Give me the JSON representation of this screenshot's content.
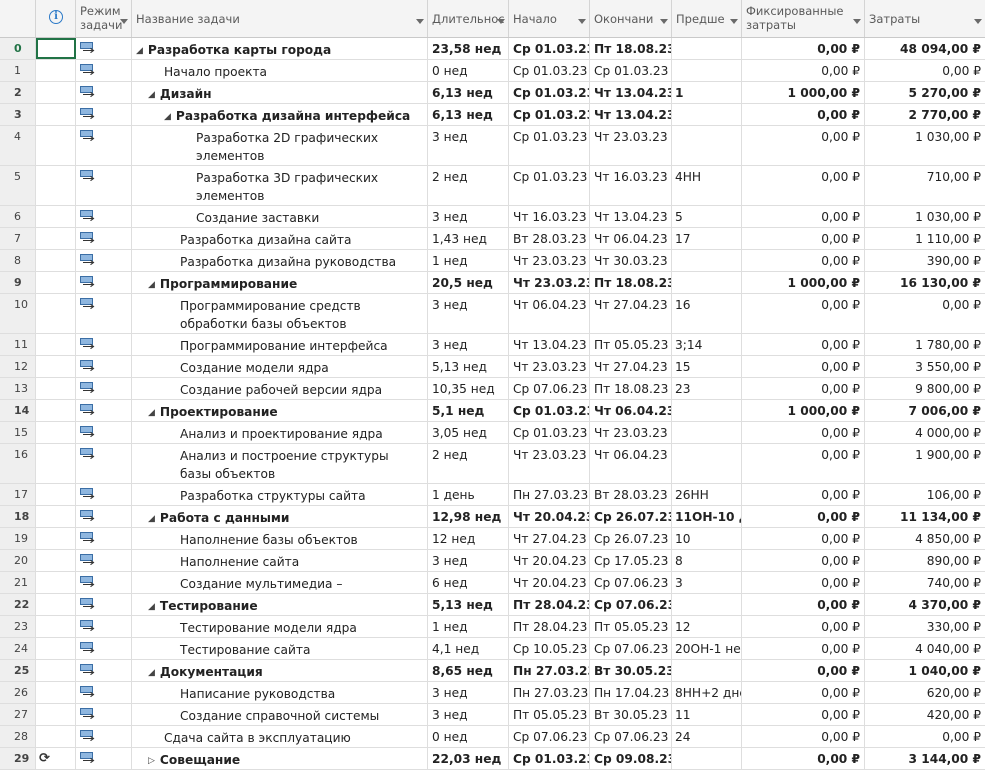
{
  "header": {
    "indicators_icon": "info-icon",
    "mode": "Режим задачи",
    "name": "Название задачи",
    "duration": "Длительнос",
    "start": "Начало",
    "finish": "Окончани",
    "predecessors": "Предше",
    "fixed_cost": "Фиксированные затраты",
    "cost": "Затраты"
  },
  "tasks": [
    {
      "id": "0",
      "level": 0,
      "summary": true,
      "expanded": true,
      "name": "Разработка карты города",
      "duration": "23,58 нед",
      "start": "Ср 01.03.23",
      "finish": "Пт 18.08.23",
      "pred": "",
      "fixed": "0,00 ₽",
      "cost": "48 094,00 ₽"
    },
    {
      "id": "1",
      "level": 1,
      "summary": false,
      "name": "Начало проекта",
      "duration": "0 нед",
      "start": "Ср 01.03.23",
      "finish": "Ср 01.03.23",
      "pred": "",
      "fixed": "0,00 ₽",
      "cost": "0,00 ₽"
    },
    {
      "id": "2",
      "level": 1,
      "summary": true,
      "expanded": true,
      "name": "Дизайн",
      "duration": "6,13 нед",
      "start": "Ср 01.03.23",
      "finish": "Чт 13.04.23",
      "pred": "1",
      "fixed": "1 000,00 ₽",
      "cost": "5 270,00 ₽"
    },
    {
      "id": "3",
      "level": 2,
      "summary": true,
      "expanded": true,
      "name": "Разработка дизайна интерфейса",
      "duration": "6,13 нед",
      "start": "Ср 01.03.23",
      "finish": "Чт 13.04.23",
      "pred": "",
      "fixed": "0,00 ₽",
      "cost": "2 770,00 ₽"
    },
    {
      "id": "4",
      "level": 3,
      "summary": false,
      "tall": true,
      "name": "Разработка 2D графических элементов",
      "duration": "3 нед",
      "start": "Ср 01.03.23",
      "finish": "Чт 23.03.23",
      "pred": "",
      "fixed": "0,00 ₽",
      "cost": "1 030,00 ₽"
    },
    {
      "id": "5",
      "level": 3,
      "summary": false,
      "tall": true,
      "name": "Разработка 3D графических элементов",
      "duration": "2 нед",
      "start": "Ср 01.03.23",
      "finish": "Чт 16.03.23",
      "pred": "4НН",
      "fixed": "0,00 ₽",
      "cost": "710,00 ₽"
    },
    {
      "id": "6",
      "level": 3,
      "summary": false,
      "name": "Создание заставки",
      "duration": "3 нед",
      "start": "Чт 16.03.23",
      "finish": "Чт 13.04.23",
      "pred": "5",
      "fixed": "0,00 ₽",
      "cost": "1 030,00 ₽"
    },
    {
      "id": "7",
      "level": 2,
      "summary": false,
      "name": "Разработка дизайна сайта",
      "duration": "1,43 нед",
      "start": "Вт 28.03.23",
      "finish": "Чт 06.04.23",
      "pred": "17",
      "fixed": "0,00 ₽",
      "cost": "1 110,00 ₽"
    },
    {
      "id": "8",
      "level": 2,
      "summary": false,
      "name": "Разработка дизайна руководства",
      "duration": "1 нед",
      "start": "Чт 23.03.23",
      "finish": "Чт 30.03.23",
      "pred": "",
      "fixed": "0,00 ₽",
      "cost": "390,00 ₽"
    },
    {
      "id": "9",
      "level": 1,
      "summary": true,
      "expanded": true,
      "name": "Программирование",
      "duration": "20,5 нед",
      "start": "Чт 23.03.23",
      "finish": "Пт 18.08.23",
      "pred": "",
      "fixed": "1 000,00 ₽",
      "cost": "16 130,00 ₽"
    },
    {
      "id": "10",
      "level": 2,
      "summary": false,
      "tall": true,
      "name": "Программирование средств обработки базы объектов",
      "duration": "3 нед",
      "start": "Чт 06.04.23",
      "finish": "Чт 27.04.23",
      "pred": "16",
      "fixed": "0,00 ₽",
      "cost": "0,00 ₽"
    },
    {
      "id": "11",
      "level": 2,
      "summary": false,
      "name": "Программирование интерфейса",
      "duration": "3 нед",
      "start": "Чт 13.04.23",
      "finish": "Пт 05.05.23",
      "pred": "3;14",
      "fixed": "0,00 ₽",
      "cost": "1 780,00 ₽"
    },
    {
      "id": "12",
      "level": 2,
      "summary": false,
      "name": "Создание модели ядра",
      "duration": "5,13 нед",
      "start": "Чт 23.03.23",
      "finish": "Чт 27.04.23",
      "pred": "15",
      "fixed": "0,00 ₽",
      "cost": "3 550,00 ₽"
    },
    {
      "id": "13",
      "level": 2,
      "summary": false,
      "name": "Создание рабочей версии ядра",
      "duration": "10,35 нед",
      "start": "Ср 07.06.23",
      "finish": "Пт 18.08.23",
      "pred": "23",
      "fixed": "0,00 ₽",
      "cost": "9 800,00 ₽"
    },
    {
      "id": "14",
      "level": 1,
      "summary": true,
      "expanded": true,
      "name": "Проектирование",
      "duration": "5,1 нед",
      "start": "Ср 01.03.23",
      "finish": "Чт 06.04.23",
      "pred": "",
      "fixed": "1 000,00 ₽",
      "cost": "7 006,00 ₽"
    },
    {
      "id": "15",
      "level": 2,
      "summary": false,
      "name": "Анализ и проектирование ядра",
      "duration": "3,05 нед",
      "start": "Ср 01.03.23",
      "finish": "Чт 23.03.23",
      "pred": "",
      "fixed": "0,00 ₽",
      "cost": "4 000,00 ₽"
    },
    {
      "id": "16",
      "level": 2,
      "summary": false,
      "tall": true,
      "name": "Анализ и построение структуры базы объектов",
      "duration": "2 нед",
      "start": "Чт 23.03.23",
      "finish": "Чт 06.04.23",
      "pred": "",
      "fixed": "0,00 ₽",
      "cost": "1 900,00 ₽"
    },
    {
      "id": "17",
      "level": 2,
      "summary": false,
      "name": "Разработка структуры сайта",
      "duration": "1 день",
      "start": "Пн 27.03.23",
      "finish": "Вт 28.03.23",
      "pred": "26НН",
      "fixed": "0,00 ₽",
      "cost": "106,00 ₽"
    },
    {
      "id": "18",
      "level": 1,
      "summary": true,
      "expanded": true,
      "name": "Работа с данными",
      "duration": "12,98 нед",
      "start": "Чт 20.04.23",
      "finish": "Ср 26.07.23",
      "pred": "11ОН-10 д",
      "fixed": "0,00 ₽",
      "cost": "11 134,00 ₽"
    },
    {
      "id": "19",
      "level": 2,
      "summary": false,
      "name": "Наполнение базы объектов",
      "duration": "12 нед",
      "start": "Чт 27.04.23",
      "finish": "Ср 26.07.23",
      "pred": "10",
      "fixed": "0,00 ₽",
      "cost": "4 850,00 ₽"
    },
    {
      "id": "20",
      "level": 2,
      "summary": false,
      "name": "Наполнение сайта",
      "duration": "3 нед",
      "start": "Чт 20.04.23",
      "finish": "Ср 17.05.23",
      "pred": "8",
      "fixed": "0,00 ₽",
      "cost": "890,00 ₽"
    },
    {
      "id": "21",
      "level": 2,
      "summary": false,
      "name": "Создание мультимедиа – наполнения",
      "duration": "6 нед",
      "start": "Чт 20.04.23",
      "finish": "Ср 07.06.23",
      "pred": "3",
      "fixed": "0,00 ₽",
      "cost": "740,00 ₽"
    },
    {
      "id": "22",
      "level": 1,
      "summary": true,
      "expanded": true,
      "name": "Тестирование",
      "duration": "5,13 нед",
      "start": "Пт 28.04.23",
      "finish": "Ср 07.06.23",
      "pred": "",
      "fixed": "0,00 ₽",
      "cost": "4 370,00 ₽"
    },
    {
      "id": "23",
      "level": 2,
      "summary": false,
      "name": "Тестирование модели ядра",
      "duration": "1 нед",
      "start": "Пт 28.04.23",
      "finish": "Пт 05.05.23",
      "pred": "12",
      "fixed": "0,00 ₽",
      "cost": "330,00 ₽"
    },
    {
      "id": "24",
      "level": 2,
      "summary": false,
      "name": "Тестирование сайта",
      "duration": "4,1 нед",
      "start": "Ср 10.05.23",
      "finish": "Ср 07.06.23",
      "pred": "20ОН-1 не",
      "fixed": "0,00 ₽",
      "cost": "4 040,00 ₽"
    },
    {
      "id": "25",
      "level": 1,
      "summary": true,
      "expanded": true,
      "name": "Документация",
      "duration": "8,65 нед",
      "start": "Пн 27.03.23",
      "finish": "Вт 30.05.23",
      "pred": "",
      "fixed": "0,00 ₽",
      "cost": "1 040,00 ₽"
    },
    {
      "id": "26",
      "level": 2,
      "summary": false,
      "name": "Написание руководства пользователя",
      "duration": "3 нед",
      "start": "Пн 27.03.23",
      "finish": "Пн 17.04.23",
      "pred": "8НН+2 дне",
      "fixed": "0,00 ₽",
      "cost": "620,00 ₽"
    },
    {
      "id": "27",
      "level": 2,
      "summary": false,
      "name": "Создание справочной системы",
      "duration": "3 нед",
      "start": "Пт 05.05.23",
      "finish": "Вт 30.05.23",
      "pred": "11",
      "fixed": "0,00 ₽",
      "cost": "420,00 ₽"
    },
    {
      "id": "28",
      "level": 1,
      "summary": false,
      "name": "Сдача сайта в эксплуатацию",
      "duration": "0 нед",
      "start": "Ср 07.06.23",
      "finish": "Ср 07.06.23",
      "pred": "24",
      "fixed": "0,00 ₽",
      "cost": "0,00 ₽"
    },
    {
      "id": "29",
      "level": 1,
      "summary": true,
      "expanded": false,
      "recurring": true,
      "name": "Совещание",
      "duration": "22,03 нед",
      "start": "Ср 01.03.23",
      "finish": "Ср 09.08.23",
      "pred": "",
      "fixed": "0,00 ₽",
      "cost": "3 144,00 ₽"
    }
  ]
}
